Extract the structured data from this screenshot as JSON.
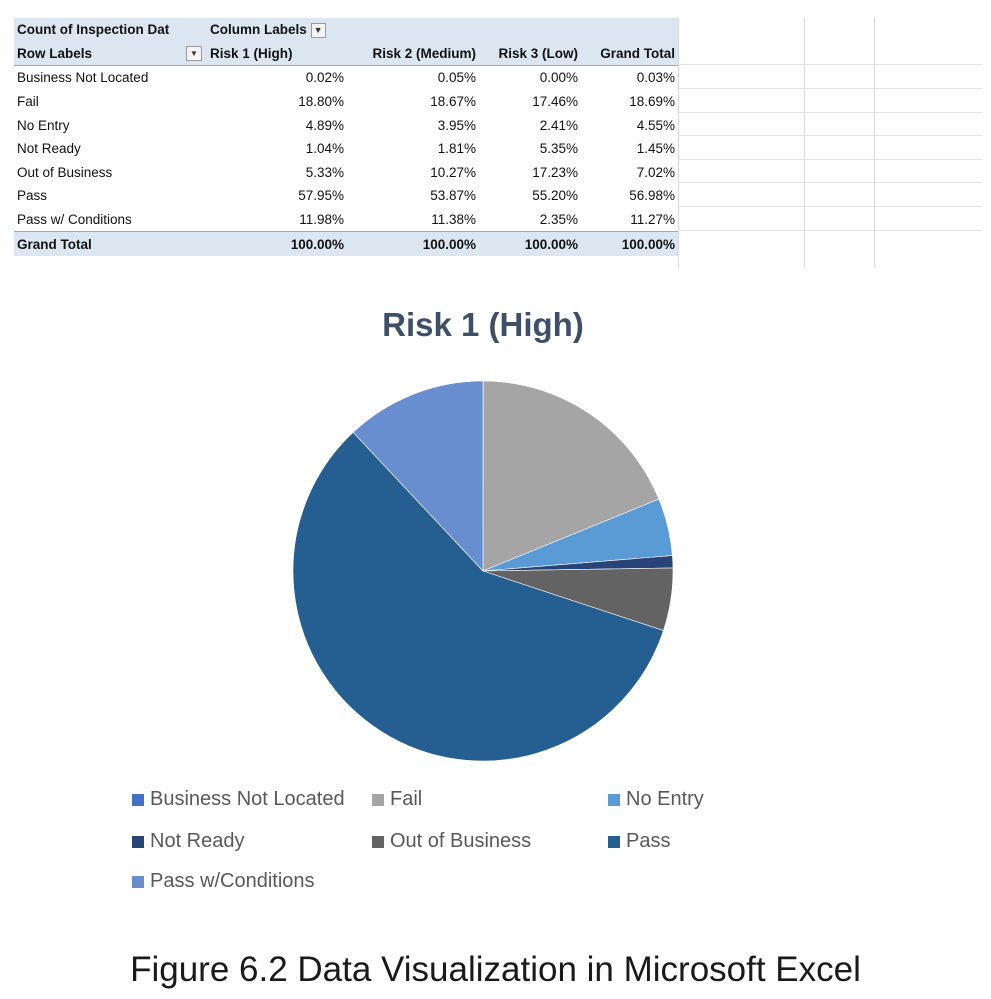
{
  "pivot": {
    "corner_label": "Count of Inspection Dat",
    "column_labels_header": "Column Labels",
    "row_labels_header": "Row Labels",
    "columns": [
      "Risk 1 (High)",
      "Risk 2 (Medium)",
      "Risk 3 (Low)",
      "Grand Total"
    ],
    "rows": [
      {
        "label": "Business Not Located",
        "values": [
          "0.02%",
          "0.05%",
          "0.00%",
          "0.03%"
        ]
      },
      {
        "label": "Fail",
        "values": [
          "18.80%",
          "18.67%",
          "17.46%",
          "18.69%"
        ]
      },
      {
        "label": "No Entry",
        "values": [
          "4.89%",
          "3.95%",
          "2.41%",
          "4.55%"
        ]
      },
      {
        "label": "Not Ready",
        "values": [
          "1.04%",
          "1.81%",
          "5.35%",
          "1.45%"
        ]
      },
      {
        "label": "Out of Business",
        "values": [
          "5.33%",
          "10.27%",
          "17.23%",
          "7.02%"
        ]
      },
      {
        "label": "Pass",
        "values": [
          "57.95%",
          "53.87%",
          "55.20%",
          "56.98%"
        ]
      },
      {
        "label": "Pass w/ Conditions",
        "values": [
          "11.98%",
          "11.38%",
          "2.35%",
          "11.27%"
        ]
      }
    ],
    "grand_total": {
      "label": "Grand Total",
      "values": [
        "100.00%",
        "100.00%",
        "100.00%",
        "100.00%"
      ]
    }
  },
  "chart_data": {
    "type": "pie",
    "title": "Risk 1 (High)",
    "categories": [
      "Business Not Located",
      "Fail",
      "No Entry",
      "Not Ready",
      "Out of Business",
      "Pass",
      "Pass w/Conditions"
    ],
    "values": [
      0.02,
      18.8,
      4.89,
      1.04,
      5.33,
      57.95,
      11.98
    ],
    "colors": [
      "#4472c4",
      "#a5a5a5",
      "#5b9bd5",
      "#264478",
      "#636363",
      "#255e91",
      "#698ed0"
    ],
    "legend_position": "bottom"
  },
  "caption": "Figure 6.2 Data Visualization in Microsoft Excel"
}
